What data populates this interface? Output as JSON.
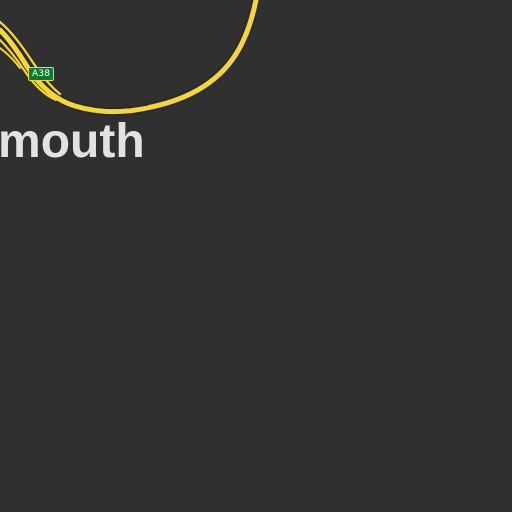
{
  "map": {
    "place_label": "Plymouth",
    "road_shield": "A38",
    "colors": {
      "background": "#303030",
      "road": "#f5d53d",
      "road_casing": "#2a2a2a",
      "label": "#e2e2e2",
      "shield_fill": "#0f7a2e"
    }
  }
}
